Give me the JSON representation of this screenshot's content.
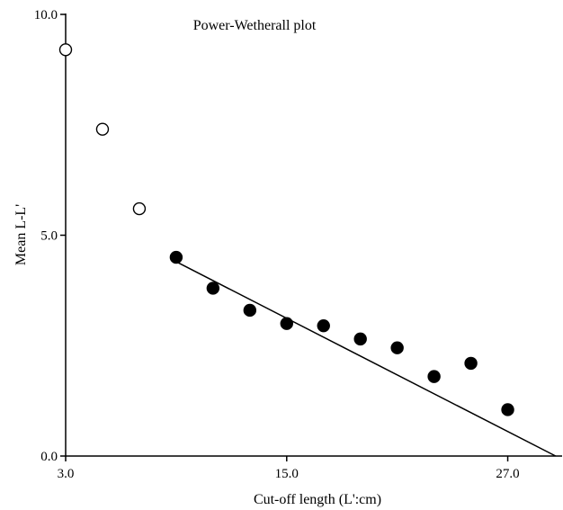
{
  "chart_data": {
    "type": "scatter",
    "title": "Power-Wetherall plot",
    "xlabel": "Cut-off length (L':cm)",
    "ylabel": "Mean L-L'",
    "xlim": [
      3.0,
      30.0
    ],
    "ylim": [
      0.0,
      10.0
    ],
    "x_ticks": [
      3.0,
      15.0,
      27.0
    ],
    "x_tick_labels": [
      "3.0",
      "15.0",
      "27.0"
    ],
    "y_ticks": [
      0.0,
      5.0,
      10.0
    ],
    "y_tick_labels": [
      "0.0",
      "5.0",
      "10.0"
    ],
    "grid": false,
    "series": [
      {
        "marker": "open-circle",
        "points": [
          {
            "x": 3.0,
            "y": 9.2
          },
          {
            "x": 5.0,
            "y": 7.4
          },
          {
            "x": 7.0,
            "y": 5.6
          }
        ]
      },
      {
        "marker": "filled-circle",
        "points": [
          {
            "x": 9.0,
            "y": 4.5
          },
          {
            "x": 11.0,
            "y": 3.8
          },
          {
            "x": 13.0,
            "y": 3.3
          },
          {
            "x": 15.0,
            "y": 3.0
          },
          {
            "x": 17.0,
            "y": 2.95
          },
          {
            "x": 19.0,
            "y": 2.65
          },
          {
            "x": 21.0,
            "y": 2.45
          },
          {
            "x": 23.0,
            "y": 1.8
          },
          {
            "x": 25.0,
            "y": 2.1
          },
          {
            "x": 27.0,
            "y": 1.05
          }
        ]
      }
    ],
    "fit_line": {
      "x1": 9.0,
      "y1": 4.4,
      "x2": 29.6,
      "y2": 0.0
    }
  }
}
